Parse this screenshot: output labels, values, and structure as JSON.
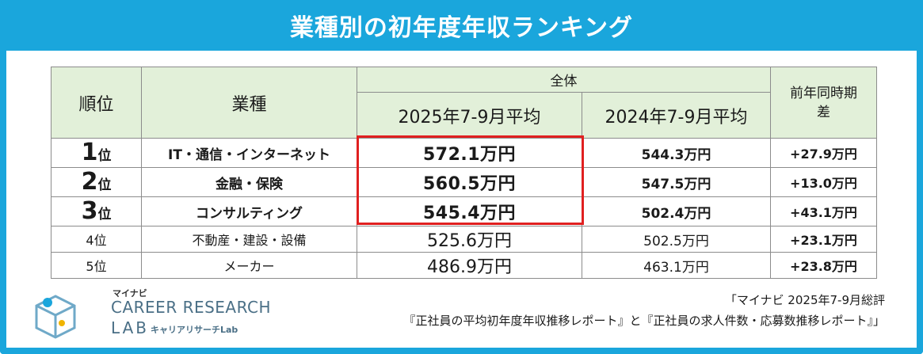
{
  "title": "業種別の初年度年収ランキング",
  "table": {
    "headers": {
      "rank": "順位",
      "industry": "業種",
      "group": "全体",
      "col_2025": "2025年7-9月平均",
      "col_2024": "2024年7-9月平均",
      "diff_line1": "前年同時期",
      "diff_line2": "差"
    },
    "rows": [
      {
        "rank_num": "1",
        "rank_suffix": "位",
        "industry": "IT・通信・インターネット",
        "v2025": "572.1万円",
        "v2024": "544.3万円",
        "diff": "+27.9万円"
      },
      {
        "rank_num": "2",
        "rank_suffix": "位",
        "industry": "金融・保険",
        "v2025": "560.5万円",
        "v2024": "547.5万円",
        "diff": "+13.0万円"
      },
      {
        "rank_num": "3",
        "rank_suffix": "位",
        "industry": "コンサルティング",
        "v2025": "545.4万円",
        "v2024": "502.4万円",
        "diff": "+43.1万円"
      },
      {
        "rank": "4位",
        "industry": "不動産・建設・設備",
        "v2025": "525.6万円",
        "v2024": "502.5万円",
        "diff": "+23.1万円"
      },
      {
        "rank": "5位",
        "industry": "メーカー",
        "v2025": "486.9万円",
        "v2024": "463.1万円",
        "diff": "+23.8万円"
      }
    ]
  },
  "logo": {
    "brand": "マイナビ",
    "line1": "CAREER RESEARCH",
    "line2": "LAB",
    "sub": "キャリアリサーチLab"
  },
  "source": {
    "line1": "「マイナビ 2025年7-9月総評",
    "line2": "『正社員の平均初年度年収推移レポート』と『正社員の求人件数・応募数推移レポート』」"
  },
  "colors": {
    "accent": "#1aa6dc",
    "header_bg": "#e2f0d9",
    "highlight": "#e02020"
  }
}
